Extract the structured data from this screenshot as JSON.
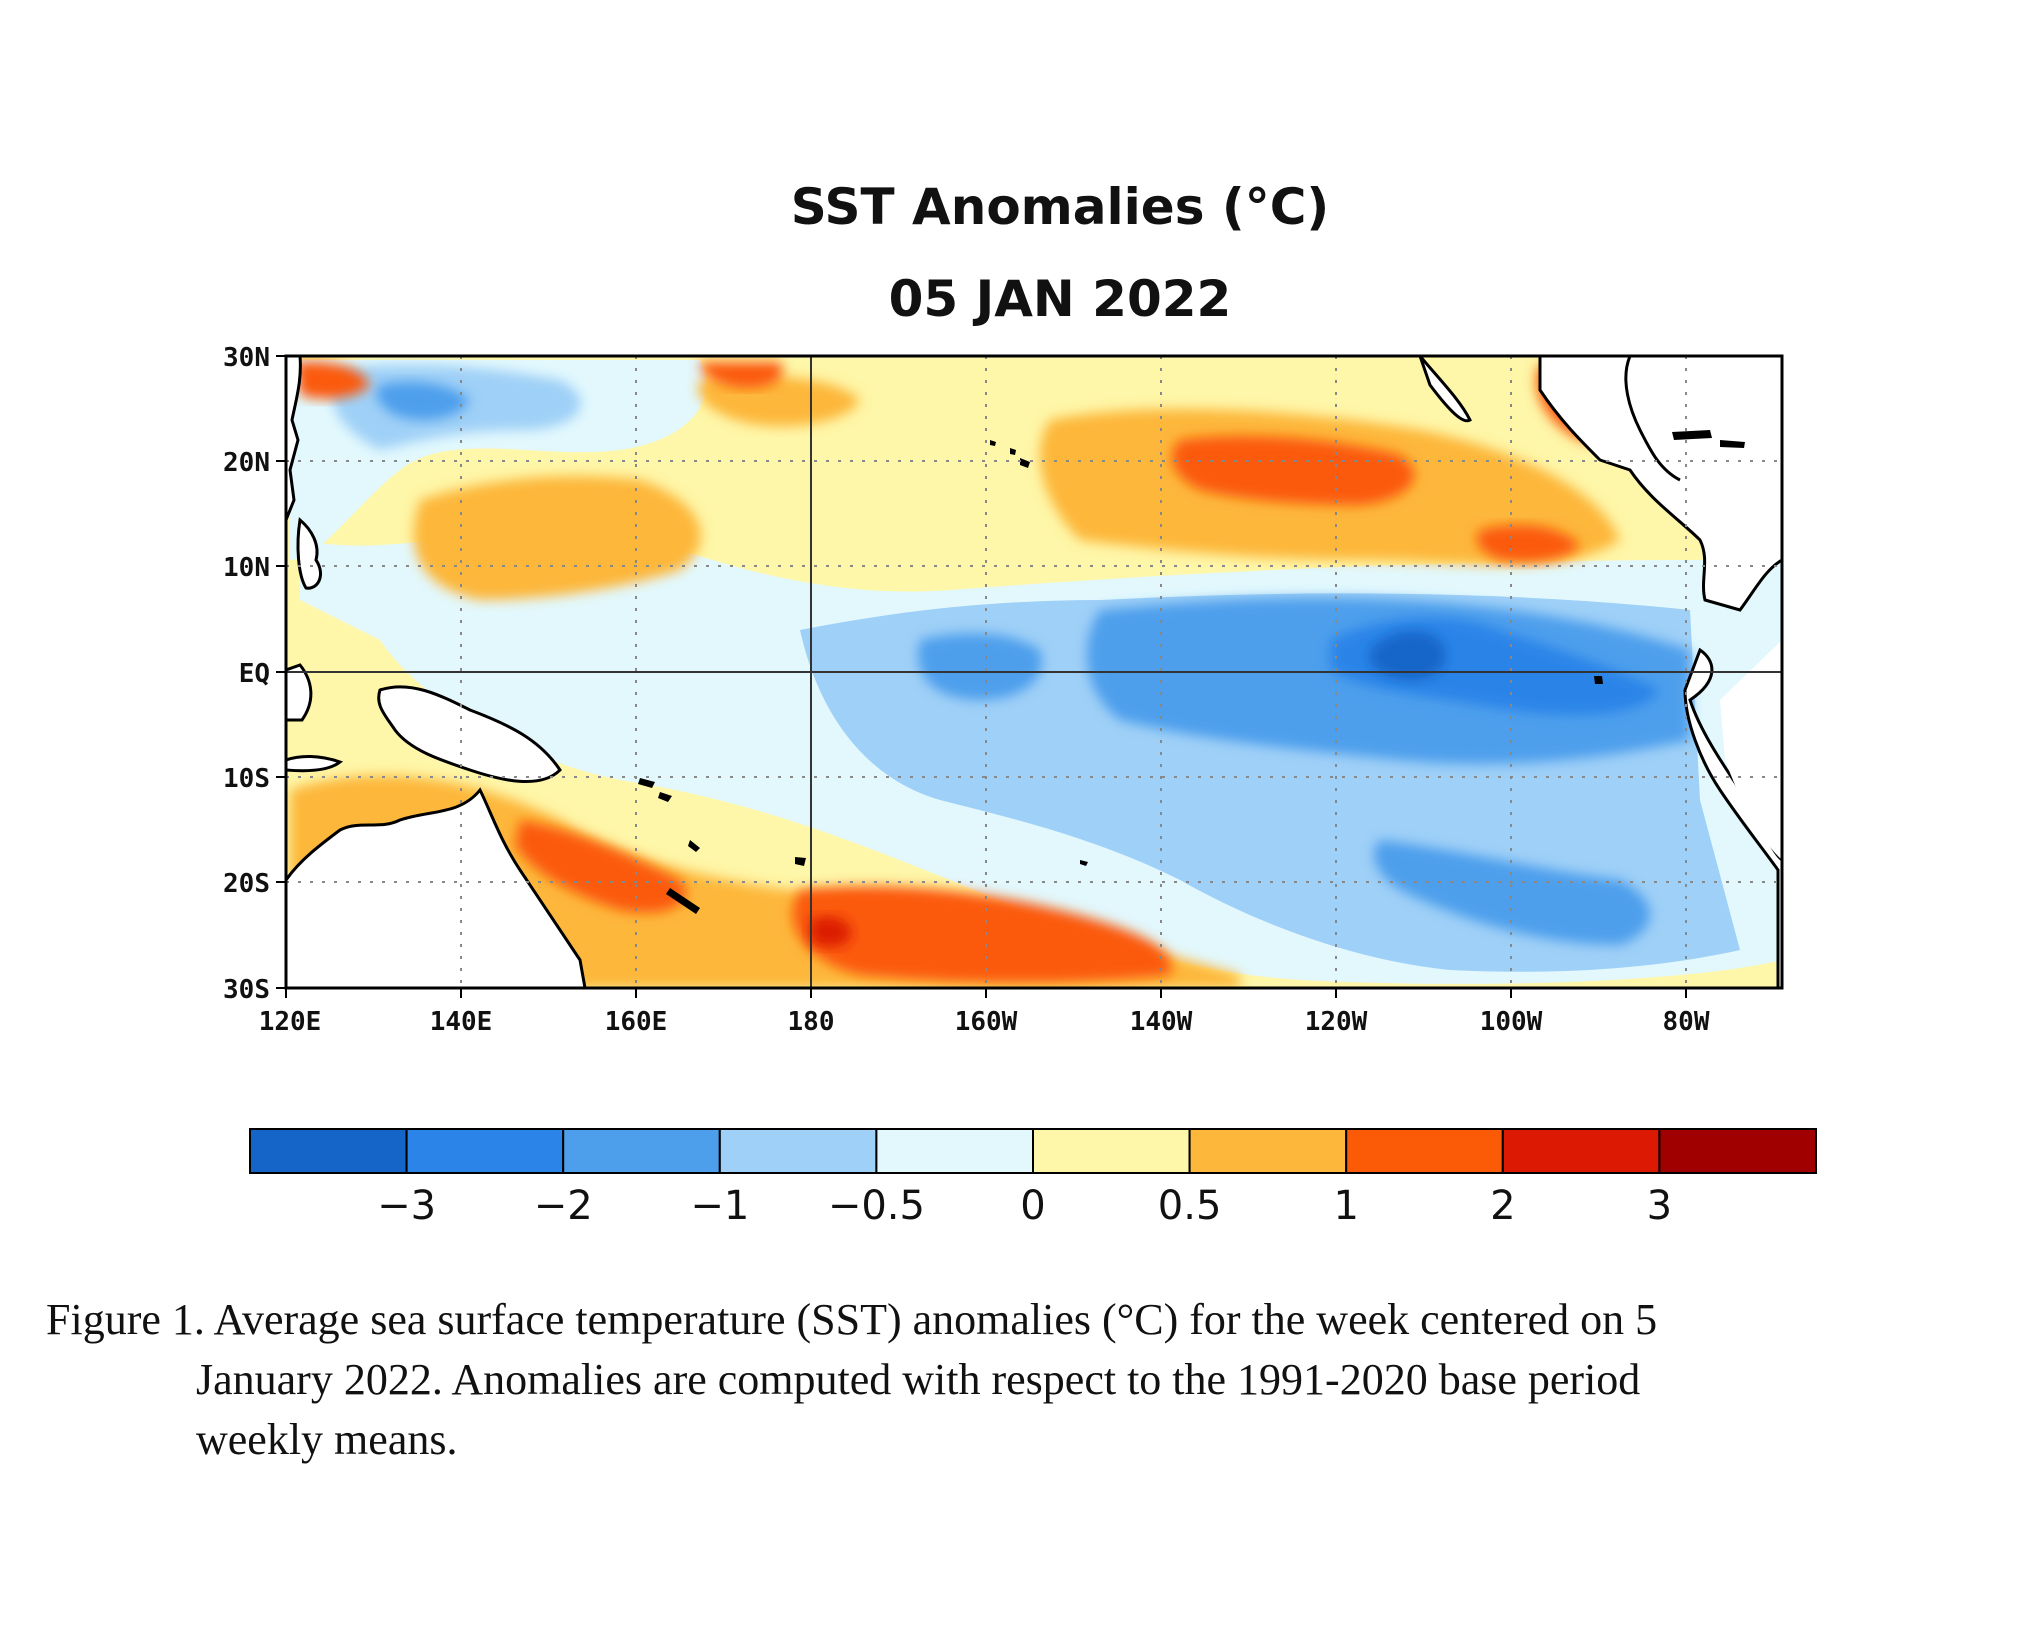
{
  "title": "SST Anomalies (°C)",
  "date": "05 JAN 2022",
  "x_ticks": [
    "120E",
    "140E",
    "160E",
    "180",
    "160W",
    "140W",
    "120W",
    "100W",
    "80W"
  ],
  "y_ticks": [
    "30N",
    "20N",
    "10N",
    "EQ",
    "10S",
    "20S",
    "30S"
  ],
  "colorbar": {
    "labels": [
      "−3",
      "−2",
      "−1",
      "−0.5",
      "0",
      "0.5",
      "1",
      "2",
      "3"
    ],
    "colors": [
      "#1565c8",
      "#2b84e8",
      "#4d9fec",
      "#9fd0f7",
      "#e2f8fd",
      "#fef6a8",
      "#fdb73b",
      "#fb5a07",
      "#dc1a04",
      "#a00000"
    ]
  },
  "palette": {
    "land": "#ffffff",
    "coast": "#000000"
  },
  "caption": {
    "line1": "Figure 1. Average sea surface temperature (SST) anomalies (°C) for the week centered on 5",
    "line2": "January 2022.  Anomalies are computed with respect to the 1991-2020 base period",
    "line3": "weekly means."
  }
}
